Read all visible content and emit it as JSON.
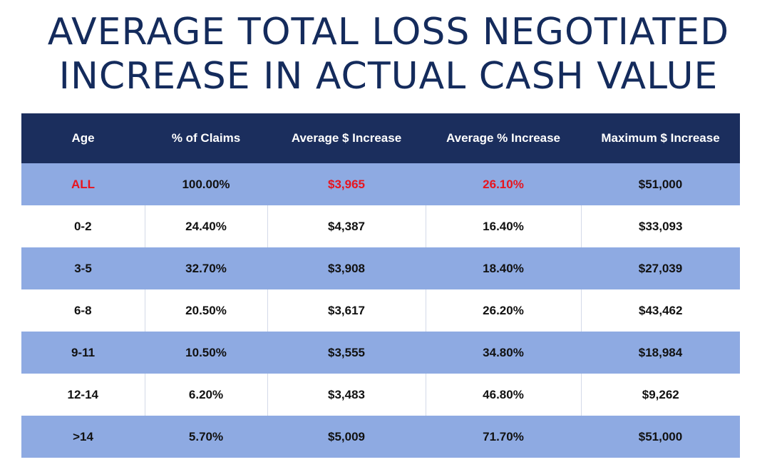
{
  "title": {
    "line1": "AVERAGE TOTAL LOSS NEGOTIATED",
    "line2": "INCREASE IN ACTUAL CASH VALUE"
  },
  "colors": {
    "header_bg": "#1b2e5d",
    "band_bg": "#8eaae2",
    "highlight_text": "#e8141e",
    "title_text": "#142b5c"
  },
  "table": {
    "headers": [
      "Age",
      "% of Claims",
      "Average $ Increase",
      "Average % Increase",
      "Maximum $ Increase"
    ],
    "rows": [
      [
        "ALL",
        "100.00%",
        "$3,965",
        "26.10%",
        "$51,000"
      ],
      [
        "0-2",
        "24.40%",
        "$4,387",
        "16.40%",
        "$33,093"
      ],
      [
        "3-5",
        "32.70%",
        "$3,908",
        "18.40%",
        "$27,039"
      ],
      [
        "6-8",
        "20.50%",
        "$3,617",
        "26.20%",
        "$43,462"
      ],
      [
        "9-11",
        "10.50%",
        "$3,555",
        "34.80%",
        "$18,984"
      ],
      [
        "12-14",
        "6.20%",
        "$3,483",
        "46.80%",
        "$9,262"
      ],
      [
        ">14",
        "5.70%",
        "$5,009",
        "71.70%",
        "$51,000"
      ]
    ]
  }
}
